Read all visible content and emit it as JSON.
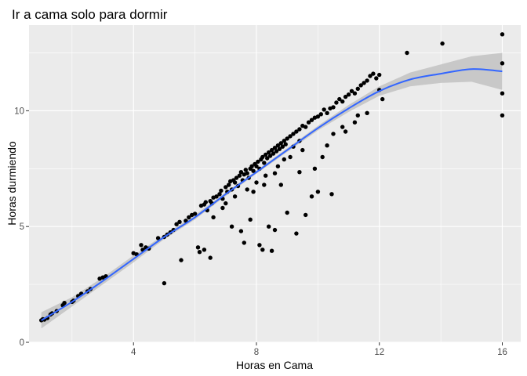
{
  "chart_data": {
    "type": "scatter",
    "title": "Ir a cama solo para dormir",
    "xlabel": "Horas en Cama",
    "ylabel": "Horas durmiendo",
    "xlim": [
      0.6,
      16.6
    ],
    "ylim": [
      0,
      13.7
    ],
    "x_ticks": [
      4,
      8,
      12,
      16
    ],
    "y_ticks": [
      0,
      5,
      10
    ],
    "grid": true,
    "background": "#ebebeb",
    "grid_color": "#ffffff",
    "point_color": "#000000",
    "smooth_line_color": "#3366ff",
    "smooth_band_color": "#c2c2c2",
    "points": [
      [
        1.0,
        0.95
      ],
      [
        1.05,
        1.0
      ],
      [
        1.1,
        0.98
      ],
      [
        1.2,
        1.05
      ],
      [
        1.3,
        1.2
      ],
      [
        1.35,
        1.25
      ],
      [
        1.5,
        1.35
      ],
      [
        1.7,
        1.6
      ],
      [
        1.75,
        1.7
      ],
      [
        2.0,
        1.75
      ],
      [
        2.05,
        1.8
      ],
      [
        2.2,
        2.0
      ],
      [
        2.3,
        2.1
      ],
      [
        2.5,
        2.2
      ],
      [
        2.6,
        2.3
      ],
      [
        2.9,
        2.75
      ],
      [
        3.0,
        2.8
      ],
      [
        3.1,
        2.85
      ],
      [
        4.0,
        3.85
      ],
      [
        4.1,
        3.8
      ],
      [
        4.25,
        4.2
      ],
      [
        4.3,
        4.0
      ],
      [
        4.4,
        4.1
      ],
      [
        4.5,
        4.05
      ],
      [
        4.8,
        4.5
      ],
      [
        5.0,
        4.55
      ],
      [
        5.1,
        4.65
      ],
      [
        5.2,
        4.75
      ],
      [
        5.3,
        4.85
      ],
      [
        5.4,
        5.1
      ],
      [
        5.5,
        5.2
      ],
      [
        5.55,
        3.55
      ],
      [
        5.7,
        5.25
      ],
      [
        5.8,
        5.4
      ],
      [
        5.9,
        5.5
      ],
      [
        6.0,
        5.55
      ],
      [
        5.0,
        2.55
      ],
      [
        6.1,
        4.1
      ],
      [
        6.15,
        3.9
      ],
      [
        6.3,
        4.0
      ],
      [
        6.5,
        3.65
      ],
      [
        6.2,
        5.9
      ],
      [
        6.3,
        5.95
      ],
      [
        6.35,
        6.05
      ],
      [
        6.4,
        5.7
      ],
      [
        6.5,
        6.1
      ],
      [
        6.55,
        6.0
      ],
      [
        6.6,
        6.25
      ],
      [
        6.7,
        6.3
      ],
      [
        6.8,
        6.4
      ],
      [
        6.85,
        6.55
      ],
      [
        6.9,
        6.2
      ],
      [
        7.0,
        6.7
      ],
      [
        7.05,
        6.5
      ],
      [
        7.1,
        6.8
      ],
      [
        7.15,
        6.95
      ],
      [
        7.2,
        6.6
      ],
      [
        7.25,
        7.0
      ],
      [
        7.3,
        6.9
      ],
      [
        7.35,
        7.1
      ],
      [
        7.4,
        6.75
      ],
      [
        7.45,
        7.2
      ],
      [
        7.5,
        7.35
      ],
      [
        7.55,
        7.0
      ],
      [
        7.6,
        7.25
      ],
      [
        7.65,
        7.45
      ],
      [
        7.7,
        7.3
      ],
      [
        7.75,
        7.1
      ],
      [
        7.8,
        7.5
      ],
      [
        7.85,
        7.6
      ],
      [
        7.9,
        7.4
      ],
      [
        7.95,
        7.7
      ],
      [
        8.0,
        7.6
      ],
      [
        8.05,
        7.8
      ],
      [
        8.1,
        7.5
      ],
      [
        8.15,
        7.9
      ],
      [
        8.2,
        8.0
      ],
      [
        8.25,
        7.75
      ],
      [
        8.3,
        8.1
      ],
      [
        8.35,
        7.95
      ],
      [
        8.4,
        8.2
      ],
      [
        8.45,
        8.05
      ],
      [
        8.5,
        8.3
      ],
      [
        8.55,
        8.15
      ],
      [
        8.6,
        8.4
      ],
      [
        8.65,
        8.25
      ],
      [
        8.7,
        8.5
      ],
      [
        8.75,
        8.35
      ],
      [
        8.8,
        8.6
      ],
      [
        8.85,
        8.45
      ],
      [
        8.9,
        8.7
      ],
      [
        8.95,
        8.55
      ],
      [
        9.0,
        8.8
      ],
      [
        9.1,
        8.9
      ],
      [
        9.2,
        9.0
      ],
      [
        9.3,
        9.1
      ],
      [
        9.4,
        9.2
      ],
      [
        9.5,
        9.35
      ],
      [
        9.6,
        9.3
      ],
      [
        9.7,
        9.5
      ],
      [
        9.8,
        9.6
      ],
      [
        9.9,
        9.7
      ],
      [
        10.0,
        9.75
      ],
      [
        10.1,
        9.85
      ],
      [
        10.2,
        10.05
      ],
      [
        10.3,
        9.9
      ],
      [
        10.4,
        10.1
      ],
      [
        10.5,
        10.15
      ],
      [
        10.6,
        10.35
      ],
      [
        10.7,
        10.5
      ],
      [
        10.8,
        10.4
      ],
      [
        10.9,
        10.6
      ],
      [
        11.0,
        10.7
      ],
      [
        11.1,
        10.85
      ],
      [
        11.2,
        10.75
      ],
      [
        11.3,
        10.95
      ],
      [
        11.4,
        11.1
      ],
      [
        11.5,
        11.2
      ],
      [
        11.6,
        11.3
      ],
      [
        11.7,
        11.5
      ],
      [
        11.8,
        11.6
      ],
      [
        11.9,
        11.4
      ],
      [
        12.0,
        11.55
      ],
      [
        12.1,
        10.5
      ],
      [
        12.9,
        12.5
      ],
      [
        14.05,
        12.9
      ],
      [
        16.0,
        13.3
      ],
      [
        16.0,
        12.05
      ],
      [
        16.0,
        10.75
      ],
      [
        16.0,
        9.8
      ],
      [
        7.2,
        5.0
      ],
      [
        7.5,
        4.8
      ],
      [
        7.6,
        4.3
      ],
      [
        7.8,
        5.3
      ],
      [
        8.1,
        4.2
      ],
      [
        8.2,
        4.0
      ],
      [
        8.4,
        5.0
      ],
      [
        8.5,
        3.95
      ],
      [
        8.6,
        4.85
      ],
      [
        9.0,
        5.6
      ],
      [
        9.3,
        4.7
      ],
      [
        9.6,
        5.5
      ],
      [
        9.8,
        6.3
      ],
      [
        10.0,
        6.5
      ],
      [
        10.45,
        6.4
      ],
      [
        8.8,
        6.8
      ],
      [
        9.4,
        7.35
      ],
      [
        9.9,
        7.5
      ],
      [
        10.15,
        8.0
      ],
      [
        10.3,
        8.5
      ],
      [
        10.9,
        9.1
      ],
      [
        11.2,
        9.5
      ],
      [
        11.3,
        9.8
      ],
      [
        11.6,
        9.9
      ],
      [
        10.5,
        9.0
      ],
      [
        10.8,
        9.3
      ],
      [
        12.0,
        10.9
      ],
      [
        6.6,
        5.4
      ],
      [
        6.9,
        5.8
      ],
      [
        7.0,
        6.0
      ],
      [
        7.3,
        6.3
      ],
      [
        7.7,
        6.6
      ],
      [
        8.0,
        6.9
      ],
      [
        8.3,
        7.2
      ],
      [
        8.7,
        7.6
      ],
      [
        9.1,
        8.0
      ],
      [
        9.5,
        8.3
      ],
      [
        9.2,
        8.45
      ],
      [
        9.4,
        8.7
      ],
      [
        8.9,
        7.9
      ],
      [
        8.6,
        7.3
      ],
      [
        8.25,
        6.8
      ],
      [
        7.9,
        6.5
      ]
    ],
    "smooth": [
      [
        1.0,
        0.95
      ],
      [
        2.0,
        1.75
      ],
      [
        3.0,
        2.65
      ],
      [
        4.0,
        3.6
      ],
      [
        5.0,
        4.55
      ],
      [
        6.0,
        5.4
      ],
      [
        7.0,
        6.4
      ],
      [
        8.0,
        7.35
      ],
      [
        9.0,
        8.3
      ],
      [
        10.0,
        9.25
      ],
      [
        11.0,
        10.1
      ],
      [
        12.0,
        10.85
      ],
      [
        13.0,
        11.35
      ],
      [
        14.0,
        11.6
      ],
      [
        15.0,
        11.8
      ],
      [
        16.0,
        11.7
      ]
    ],
    "band": [
      [
        1.0,
        0.6,
        1.3
      ],
      [
        2.0,
        1.55,
        1.95
      ],
      [
        3.0,
        2.5,
        2.8
      ],
      [
        4.0,
        3.45,
        3.75
      ],
      [
        5.0,
        4.45,
        4.65
      ],
      [
        6.0,
        5.3,
        5.5
      ],
      [
        7.0,
        6.32,
        6.48
      ],
      [
        8.0,
        7.28,
        7.42
      ],
      [
        9.0,
        8.22,
        8.38
      ],
      [
        10.0,
        9.15,
        9.35
      ],
      [
        11.0,
        9.95,
        10.25
      ],
      [
        12.0,
        10.65,
        11.05
      ],
      [
        13.0,
        11.05,
        11.65
      ],
      [
        14.0,
        11.2,
        12.0
      ],
      [
        15.0,
        11.25,
        12.35
      ],
      [
        16.0,
        10.9,
        12.5
      ]
    ]
  }
}
